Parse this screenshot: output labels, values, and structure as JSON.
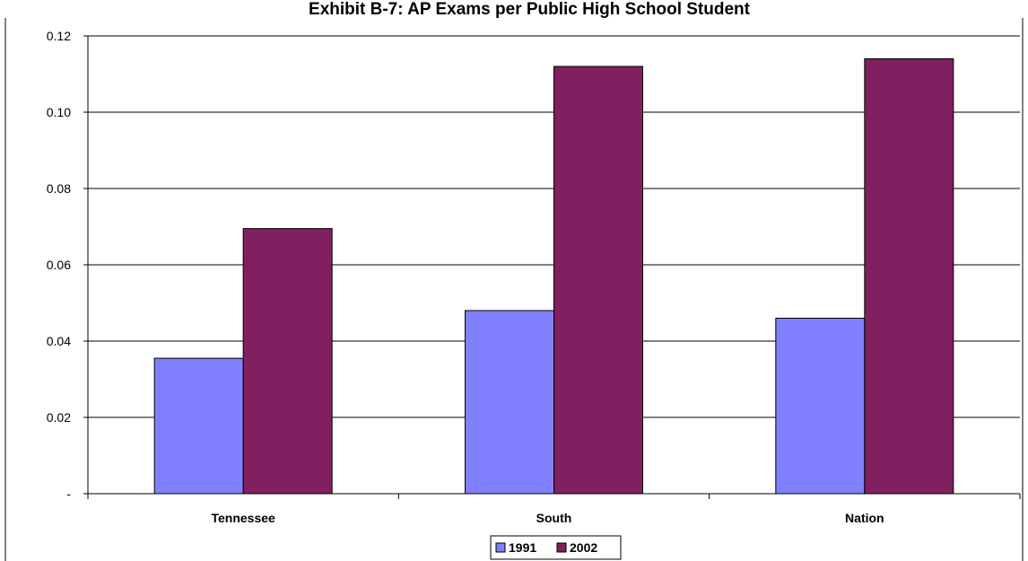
{
  "chart_data": {
    "type": "bar",
    "title": "Exhibit B-7: AP Exams per Public High School Student",
    "xlabel": "",
    "ylabel": "",
    "categories": [
      "Tennessee",
      "South",
      "Nation"
    ],
    "series": [
      {
        "name": "1991",
        "values": [
          0.0355,
          0.048,
          0.046
        ],
        "color": "#8080FF"
      },
      {
        "name": "2002",
        "values": [
          0.0695,
          0.112,
          0.114
        ],
        "color": "#802060"
      }
    ],
    "ylim": [
      0,
      0.12
    ],
    "y_ticks": [
      {
        "value": 0,
        "label": "-"
      },
      {
        "value": 0.02,
        "label": "0.02"
      },
      {
        "value": 0.04,
        "label": "0.04"
      },
      {
        "value": 0.06,
        "label": "0.06"
      },
      {
        "value": 0.08,
        "label": "0.08"
      },
      {
        "value": 0.1,
        "label": "0.10"
      },
      {
        "value": 0.12,
        "label": "0.12"
      }
    ],
    "grid": true,
    "legend": "bottom"
  }
}
